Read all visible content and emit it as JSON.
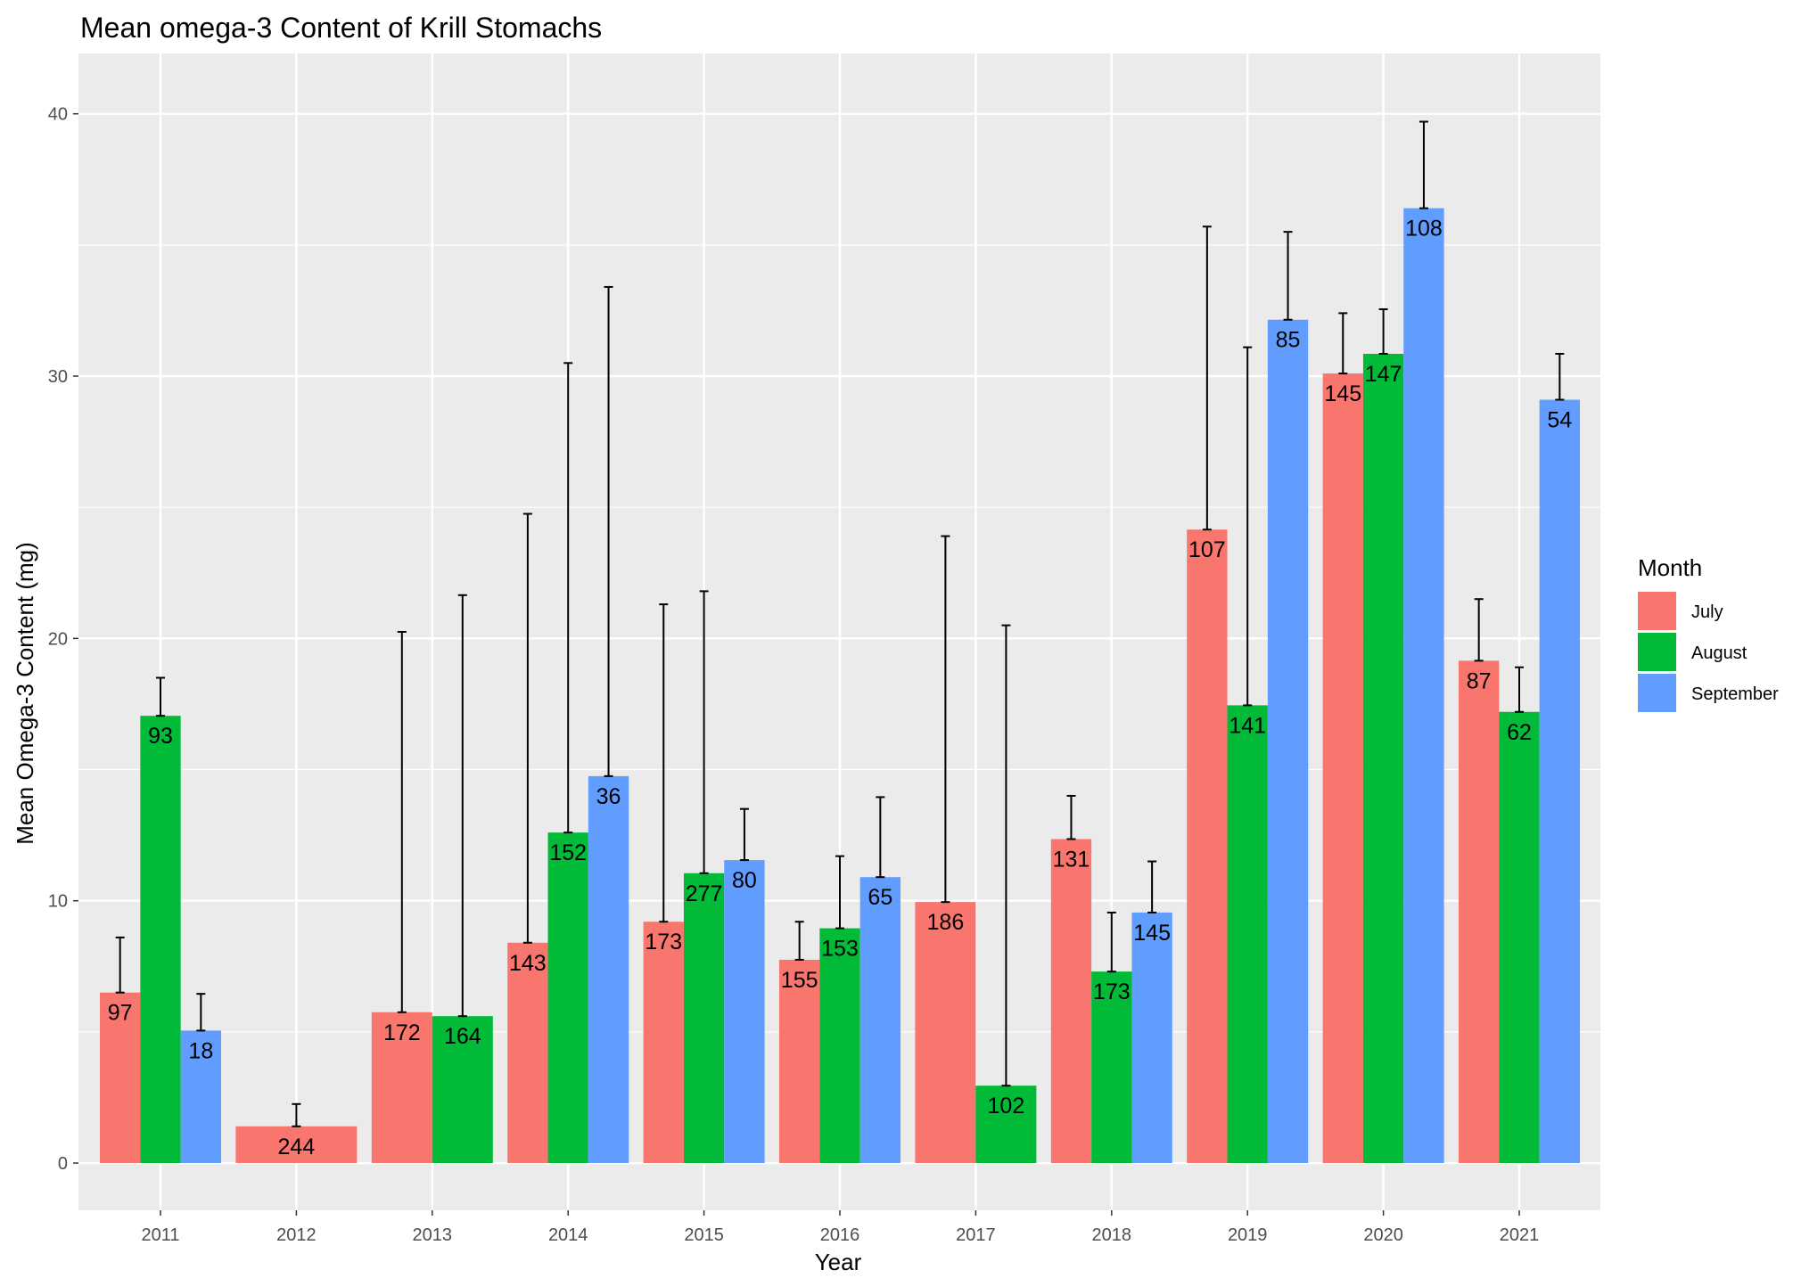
{
  "chart_data": {
    "type": "bar",
    "title": "Mean omega-3 Content of Krill Stomachs",
    "xlabel": "Year",
    "ylabel": "Mean Omega-3 Content (mg)",
    "ylim": [
      -1.8,
      42.3
    ],
    "yticks": [
      0,
      10,
      20,
      30,
      40
    ],
    "categories": [
      "2011",
      "2012",
      "2013",
      "2014",
      "2015",
      "2016",
      "2017",
      "2018",
      "2019",
      "2020",
      "2021"
    ],
    "grid": true,
    "legend": {
      "title": "Month",
      "position": "right"
    },
    "series": [
      {
        "name": "July",
        "color": "#F8766D",
        "values": [
          6.5,
          1.4,
          5.75,
          8.4,
          9.2,
          7.75,
          9.95,
          12.35,
          24.15,
          30.1,
          19.15
        ],
        "error_upper": [
          8.6,
          2.25,
          20.25,
          24.75,
          21.3,
          9.2,
          23.9,
          14.0,
          35.7,
          32.4,
          21.5
        ],
        "labels": [
          "97",
          "244",
          "172",
          "143",
          "173",
          "155",
          "186",
          "131",
          "107",
          "145",
          "87"
        ]
      },
      {
        "name": "August",
        "color": "#00BA38",
        "values": [
          17.05,
          null,
          5.6,
          12.6,
          11.05,
          8.95,
          2.95,
          7.3,
          17.45,
          30.85,
          17.2
        ],
        "error_upper": [
          18.5,
          null,
          21.65,
          30.5,
          21.8,
          11.7,
          20.5,
          9.55,
          31.1,
          32.55,
          18.9
        ],
        "labels": [
          "93",
          "",
          "164",
          "152",
          "277",
          "153",
          "102",
          "173",
          "141",
          "147",
          "62"
        ]
      },
      {
        "name": "September",
        "color": "#619CFF",
        "values": [
          5.05,
          null,
          null,
          14.75,
          11.55,
          10.9,
          null,
          9.55,
          32.15,
          36.4,
          29.1
        ],
        "error_upper": [
          6.45,
          null,
          null,
          33.4,
          13.5,
          13.95,
          null,
          11.5,
          35.5,
          39.7,
          30.85
        ],
        "labels": [
          "18",
          "",
          "",
          "36",
          "80",
          "65",
          "",
          "145",
          "85",
          "108",
          "54"
        ]
      }
    ]
  }
}
